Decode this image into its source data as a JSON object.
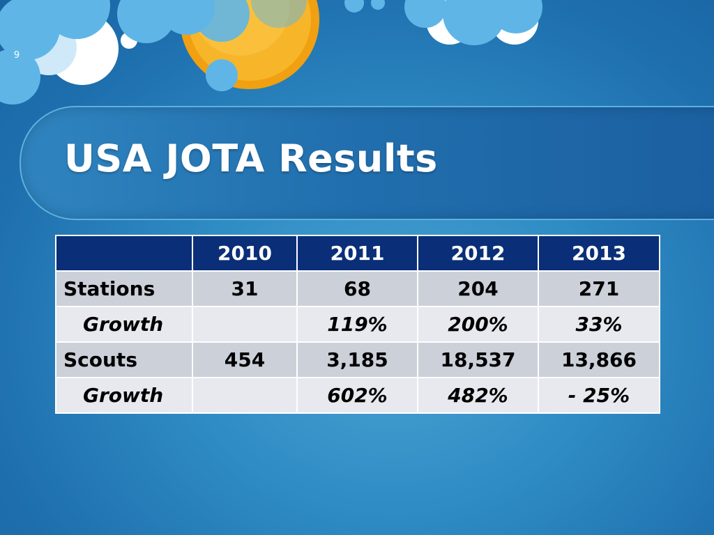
{
  "slide": {
    "number": "9",
    "title": "USA JOTA Results"
  },
  "table": {
    "header": [
      "",
      "2010",
      "2011",
      "2012",
      "2013"
    ],
    "rows": [
      {
        "label": "Stations",
        "values": [
          "31",
          "68",
          "204",
          "271"
        ]
      },
      {
        "label": "Growth",
        "values": [
          "",
          "119%",
          "200%",
          "33%"
        ]
      },
      {
        "label": "Scouts",
        "values": [
          "454",
          "3,185",
          "18,537",
          "13,866"
        ]
      },
      {
        "label": "Growth",
        "values": [
          "",
          "602%",
          "482%",
          "- 25%"
        ]
      }
    ]
  },
  "colors": {
    "background": "#2f8cc4",
    "header_fill": "#0a2f78",
    "row_fill_dark": "#cbd0d9",
    "row_fill_light": "#e7e9ee",
    "sun": "#f4a519",
    "cloud_blue": "#5fb6e6",
    "cloud_white": "#ffffff"
  }
}
